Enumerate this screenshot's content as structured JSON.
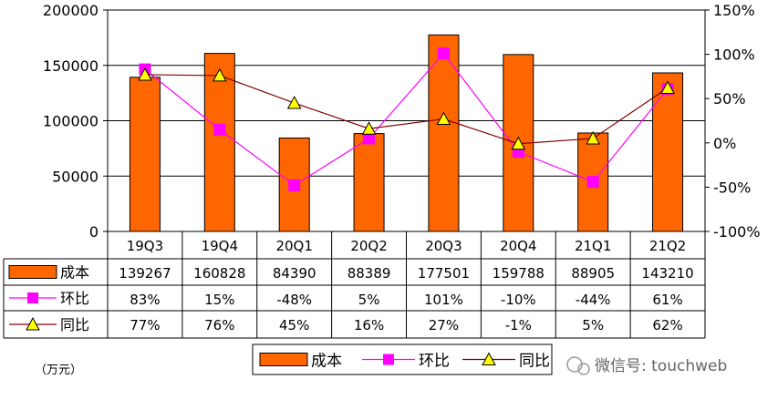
{
  "chart_data": {
    "type": "bar",
    "categories": [
      "19Q3",
      "19Q4",
      "20Q1",
      "20Q2",
      "20Q3",
      "20Q4",
      "21Q1",
      "21Q2"
    ],
    "series": [
      {
        "name": "成本",
        "type": "bar",
        "axis": "left",
        "color": "#FF6600",
        "values": [
          139267,
          160828,
          84390,
          88389,
          177501,
          159788,
          88905,
          143210
        ]
      },
      {
        "name": "环比",
        "type": "line",
        "axis": "right",
        "color": "#FF00FF",
        "marker": "square",
        "values": [
          83,
          15,
          -48,
          5,
          101,
          -10,
          -44,
          61
        ]
      },
      {
        "name": "同比",
        "type": "line",
        "axis": "right",
        "color": "#800000",
        "marker": "triangle",
        "marker_color": "#FFFF00",
        "values": [
          77,
          76,
          45,
          16,
          27,
          -1,
          5,
          62
        ]
      }
    ],
    "table_rows": [
      [
        "139267",
        "160828",
        "84390",
        "88389",
        "177501",
        "159788",
        "88905",
        "143210"
      ],
      [
        "83%",
        "15%",
        "-48%",
        "5%",
        "101%",
        "-10%",
        "-44%",
        "61%"
      ],
      [
        "77%",
        "76%",
        "45%",
        "16%",
        "27%",
        "-1%",
        "5%",
        "62%"
      ]
    ],
    "ylim_left": [
      0,
      200000
    ],
    "yticks_left": [
      "0",
      "50000",
      "100000",
      "150000",
      "200000"
    ],
    "ylim_right": [
      -100,
      150
    ],
    "yticks_right": [
      "-100%",
      "-50%",
      "0%",
      "50%",
      "100%",
      "150%"
    ],
    "grid": true,
    "legend_position": "bottom",
    "unit_label": "（万元）"
  },
  "watermark": "微信号: touchweb"
}
